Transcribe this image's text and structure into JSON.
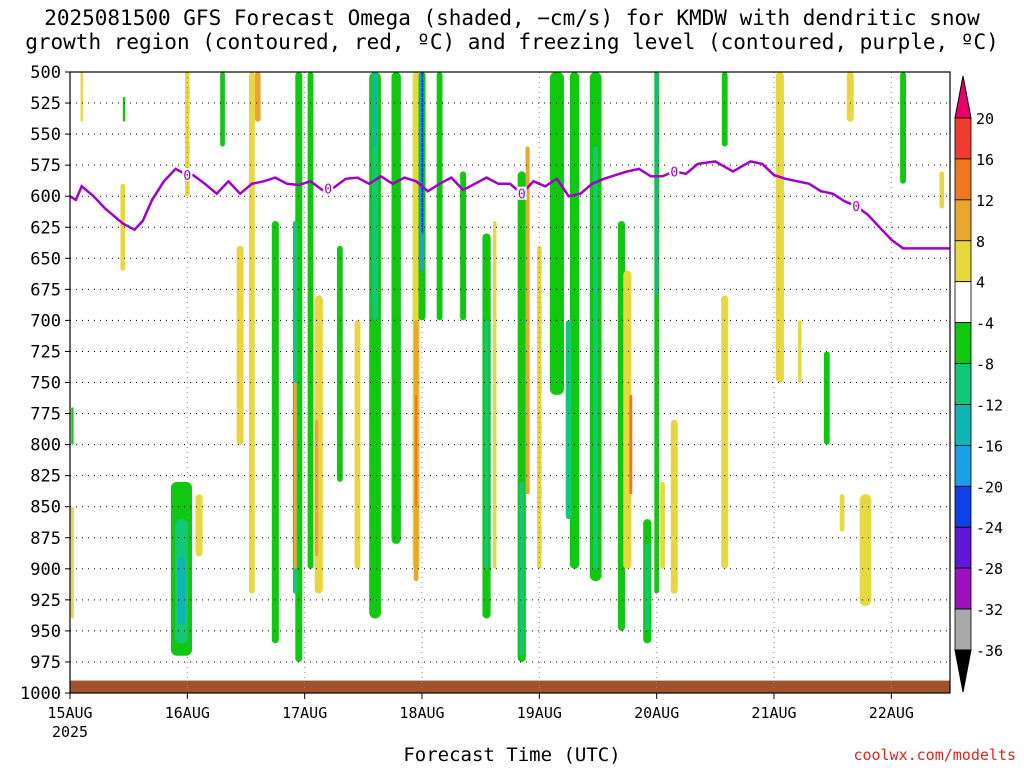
{
  "chart_data": {
    "type": "heatmap",
    "title_line1": "2025081500 GFS Forecast Omega (shaded, −cm/s) for KMDW with dendritic snow",
    "title_line2": "growth region (contoured, red, ºC) and freezing level (contoured, purple, ºC)",
    "xlabel": "Forecast Time (UTC)",
    "credit": "coolwx.com/modelts",
    "x_ticks": [
      "15AUG",
      "16AUG",
      "17AUG",
      "18AUG",
      "19AUG",
      "20AUG",
      "21AUG",
      "22AUG"
    ],
    "x_year": "2025",
    "xlim_days": [
      0,
      7.5
    ],
    "y_ticks": [
      500,
      525,
      550,
      575,
      600,
      625,
      650,
      675,
      700,
      725,
      750,
      775,
      800,
      825,
      850,
      875,
      900,
      925,
      950,
      975,
      1000
    ],
    "ylim": [
      500,
      1000
    ],
    "grid": true,
    "freezing_level": {
      "label": "0",
      "color": "#a000c8",
      "x": [
        0,
        0.05,
        0.1,
        0.2,
        0.3,
        0.45,
        0.55,
        0.62,
        0.7,
        0.8,
        0.9,
        1.0,
        1.05,
        1.15,
        1.25,
        1.35,
        1.45,
        1.55,
        1.65,
        1.75,
        1.85,
        1.95,
        2.05,
        2.15,
        2.25,
        2.35,
        2.45,
        2.55,
        2.65,
        2.75,
        2.85,
        2.95,
        3.05,
        3.15,
        3.25,
        3.35,
        3.45,
        3.55,
        3.65,
        3.75,
        3.85,
        3.95,
        4.05,
        4.15,
        4.25,
        4.35,
        4.45,
        4.55,
        4.65,
        4.75,
        4.85,
        4.95,
        5.05,
        5.15,
        5.25,
        5.35,
        5.5,
        5.65,
        5.8,
        5.9,
        6.0,
        6.1,
        6.2,
        6.3,
        6.4,
        6.5,
        6.6,
        6.7,
        6.8,
        6.9,
        7.0,
        7.1,
        7.2,
        7.3,
        7.4,
        7.5
      ],
      "y": [
        600,
        603,
        592,
        600,
        610,
        622,
        627,
        620,
        603,
        588,
        578,
        583,
        583,
        590,
        598,
        588,
        598,
        590,
        588,
        585,
        590,
        591,
        588,
        595,
        593,
        586,
        585,
        590,
        584,
        590,
        585,
        588,
        596,
        590,
        585,
        595,
        590,
        585,
        590,
        590,
        598,
        588,
        592,
        586,
        600,
        598,
        590,
        586,
        583,
        580,
        578,
        584,
        584,
        580,
        582,
        574,
        572,
        580,
        572,
        574,
        583,
        586,
        588,
        590,
        596,
        598,
        604,
        608,
        615,
        625,
        635,
        642,
        642,
        642,
        642,
        642
      ],
      "label_x": [
        1.0,
        2.2,
        3.85,
        5.15,
        6.7
      ]
    },
    "colorbar": {
      "labels": [
        "20",
        "16",
        "12",
        "8",
        "4",
        "-4",
        "-8",
        "-12",
        "-16",
        "-20",
        "-24",
        "-28",
        "-32",
        "-36"
      ],
      "colors": [
        "#e8006a",
        "#f03c30",
        "#f07820",
        "#e8a830",
        "#e8d840",
        "#ffffff",
        "#10c810",
        "#10c878",
        "#10b4b4",
        "#1aa0e8",
        "#1040e8",
        "#6018d8",
        "#9c10c0",
        "#a8a8a8",
        "#000000"
      ]
    },
    "omega_regions": [
      {
        "x": 0.95,
        "p1": 830,
        "p2": 970,
        "w": 0.18,
        "color": "#10c810"
      },
      {
        "x": 0.95,
        "p1": 860,
        "p2": 960,
        "w": 0.11,
        "color": "#10c878"
      },
      {
        "x": 0.95,
        "p1": 890,
        "p2": 945,
        "w": 0.06,
        "color": "#10b4b4"
      },
      {
        "x": 1.1,
        "p1": 840,
        "p2": 890,
        "w": 0.06,
        "color": "#e8d840"
      },
      {
        "x": 0.45,
        "p1": 590,
        "p2": 660,
        "w": 0.04,
        "color": "#e8d840"
      },
      {
        "x": 1.0,
        "p1": 500,
        "p2": 600,
        "w": 0.04,
        "color": "#e8d840"
      },
      {
        "x": 1.3,
        "p1": 500,
        "p2": 560,
        "w": 0.04,
        "color": "#10c810"
      },
      {
        "x": 1.55,
        "p1": 500,
        "p2": 920,
        "w": 0.05,
        "color": "#e8d840"
      },
      {
        "x": 1.45,
        "p1": 640,
        "p2": 800,
        "w": 0.06,
        "color": "#e8d840"
      },
      {
        "x": 1.6,
        "p1": 500,
        "p2": 540,
        "w": 0.05,
        "color": "#e8a830"
      },
      {
        "x": 1.75,
        "p1": 620,
        "p2": 960,
        "w": 0.06,
        "color": "#10c810"
      },
      {
        "x": 1.95,
        "p1": 500,
        "p2": 975,
        "w": 0.06,
        "color": "#10c810"
      },
      {
        "x": 1.92,
        "p1": 620,
        "p2": 920,
        "w": 0.04,
        "color": "#10c878"
      },
      {
        "x": 1.92,
        "p1": 750,
        "p2": 900,
        "w": 0.025,
        "color": "#e8a830"
      },
      {
        "x": 2.05,
        "p1": 500,
        "p2": 900,
        "w": 0.05,
        "color": "#10c810"
      },
      {
        "x": 2.12,
        "p1": 680,
        "p2": 920,
        "w": 0.07,
        "color": "#e8d840"
      },
      {
        "x": 2.1,
        "p1": 780,
        "p2": 890,
        "w": 0.03,
        "color": "#e8a830"
      },
      {
        "x": 2.3,
        "p1": 640,
        "p2": 830,
        "w": 0.05,
        "color": "#10c810"
      },
      {
        "x": 2.45,
        "p1": 700,
        "p2": 900,
        "w": 0.05,
        "color": "#e8d840"
      },
      {
        "x": 2.6,
        "p1": 500,
        "p2": 940,
        "w": 0.1,
        "color": "#10c810"
      },
      {
        "x": 2.6,
        "p1": 500,
        "p2": 700,
        "w": 0.05,
        "color": "#10c878"
      },
      {
        "x": 2.6,
        "p1": 500,
        "p2": 560,
        "w": 0.025,
        "color": "#10b4b4"
      },
      {
        "x": 2.78,
        "p1": 500,
        "p2": 880,
        "w": 0.08,
        "color": "#10c810"
      },
      {
        "x": 2.95,
        "p1": 500,
        "p2": 900,
        "w": 0.06,
        "color": "#e8d840"
      },
      {
        "x": 3.0,
        "p1": 500,
        "p2": 700,
        "w": 0.06,
        "color": "#10c810"
      },
      {
        "x": 3.0,
        "p1": 500,
        "p2": 660,
        "w": 0.03,
        "color": "#1aa0e8"
      },
      {
        "x": 3.0,
        "p1": 500,
        "p2": 630,
        "w": 0.012,
        "color": "#1040e8"
      },
      {
        "x": 2.95,
        "p1": 700,
        "p2": 910,
        "w": 0.04,
        "color": "#e8a830"
      },
      {
        "x": 2.95,
        "p1": 760,
        "p2": 850,
        "w": 0.018,
        "color": "#f07820"
      },
      {
        "x": 3.15,
        "p1": 500,
        "p2": 700,
        "w": 0.05,
        "color": "#10c810"
      },
      {
        "x": 3.35,
        "p1": 580,
        "p2": 700,
        "w": 0.05,
        "color": "#10c810"
      },
      {
        "x": 3.55,
        "p1": 630,
        "p2": 940,
        "w": 0.07,
        "color": "#10c810"
      },
      {
        "x": 3.55,
        "p1": 700,
        "p2": 900,
        "w": 0.035,
        "color": "#10c878"
      },
      {
        "x": 3.62,
        "p1": 620,
        "p2": 900,
        "w": 0.03,
        "color": "#e8d840"
      },
      {
        "x": 3.85,
        "p1": 580,
        "p2": 975,
        "w": 0.07,
        "color": "#10c810"
      },
      {
        "x": 3.85,
        "p1": 830,
        "p2": 970,
        "w": 0.04,
        "color": "#10c878"
      },
      {
        "x": 3.9,
        "p1": 560,
        "p2": 840,
        "w": 0.035,
        "color": "#e8a830"
      },
      {
        "x": 4.0,
        "p1": 640,
        "p2": 900,
        "w": 0.04,
        "color": "#e8d840"
      },
      {
        "x": 4.15,
        "p1": 500,
        "p2": 760,
        "w": 0.12,
        "color": "#10c810"
      },
      {
        "x": 4.3,
        "p1": 500,
        "p2": 900,
        "w": 0.08,
        "color": "#10c810"
      },
      {
        "x": 4.25,
        "p1": 700,
        "p2": 860,
        "w": 0.05,
        "color": "#10c878"
      },
      {
        "x": 4.48,
        "p1": 500,
        "p2": 910,
        "w": 0.1,
        "color": "#10c810"
      },
      {
        "x": 4.48,
        "p1": 560,
        "p2": 900,
        "w": 0.04,
        "color": "#10c878"
      },
      {
        "x": 4.7,
        "p1": 620,
        "p2": 950,
        "w": 0.06,
        "color": "#10c810"
      },
      {
        "x": 4.75,
        "p1": 660,
        "p2": 900,
        "w": 0.07,
        "color": "#e8d840"
      },
      {
        "x": 4.78,
        "p1": 760,
        "p2": 840,
        "w": 0.025,
        "color": "#f07820"
      },
      {
        "x": 4.92,
        "p1": 860,
        "p2": 960,
        "w": 0.07,
        "color": "#10c810"
      },
      {
        "x": 4.92,
        "p1": 880,
        "p2": 950,
        "w": 0.04,
        "color": "#10c878"
      },
      {
        "x": 5.0,
        "p1": 500,
        "p2": 920,
        "w": 0.04,
        "color": "#10c810"
      },
      {
        "x": 5.0,
        "p1": 500,
        "p2": 680,
        "w": 0.018,
        "color": "#10b4b4"
      },
      {
        "x": 5.15,
        "p1": 780,
        "p2": 920,
        "w": 0.06,
        "color": "#e8d840"
      },
      {
        "x": 5.05,
        "p1": 830,
        "p2": 900,
        "w": 0.04,
        "color": "#e8d840"
      },
      {
        "x": 5.58,
        "p1": 500,
        "p2": 560,
        "w": 0.05,
        "color": "#10c810"
      },
      {
        "x": 5.58,
        "p1": 680,
        "p2": 900,
        "w": 0.06,
        "color": "#e8d840"
      },
      {
        "x": 6.05,
        "p1": 500,
        "p2": 750,
        "w": 0.07,
        "color": "#e8d840"
      },
      {
        "x": 6.22,
        "p1": 700,
        "p2": 750,
        "w": 0.03,
        "color": "#e8d840"
      },
      {
        "x": 6.45,
        "p1": 725,
        "p2": 800,
        "w": 0.05,
        "color": "#10c810"
      },
      {
        "x": 6.58,
        "p1": 840,
        "p2": 870,
        "w": 0.04,
        "color": "#e8d840"
      },
      {
        "x": 6.78,
        "p1": 840,
        "p2": 930,
        "w": 0.1,
        "color": "#e8d840"
      },
      {
        "x": 6.65,
        "p1": 500,
        "p2": 540,
        "w": 0.06,
        "color": "#e8d840"
      },
      {
        "x": 7.1,
        "p1": 500,
        "p2": 590,
        "w": 0.05,
        "color": "#10c810"
      },
      {
        "x": 7.43,
        "p1": 580,
        "p2": 610,
        "w": 0.04,
        "color": "#e8d840"
      },
      {
        "x": 0.02,
        "p1": 850,
        "p2": 940,
        "w": 0.025,
        "color": "#e8d840"
      },
      {
        "x": 0.02,
        "p1": 770,
        "p2": 800,
        "w": 0.02,
        "color": "#10c810"
      },
      {
        "x": 0.1,
        "p1": 500,
        "p2": 540,
        "w": 0.02,
        "color": "#e8d840"
      },
      {
        "x": 0.46,
        "p1": 520,
        "p2": 540,
        "w": 0.02,
        "color": "#10c810"
      }
    ]
  }
}
